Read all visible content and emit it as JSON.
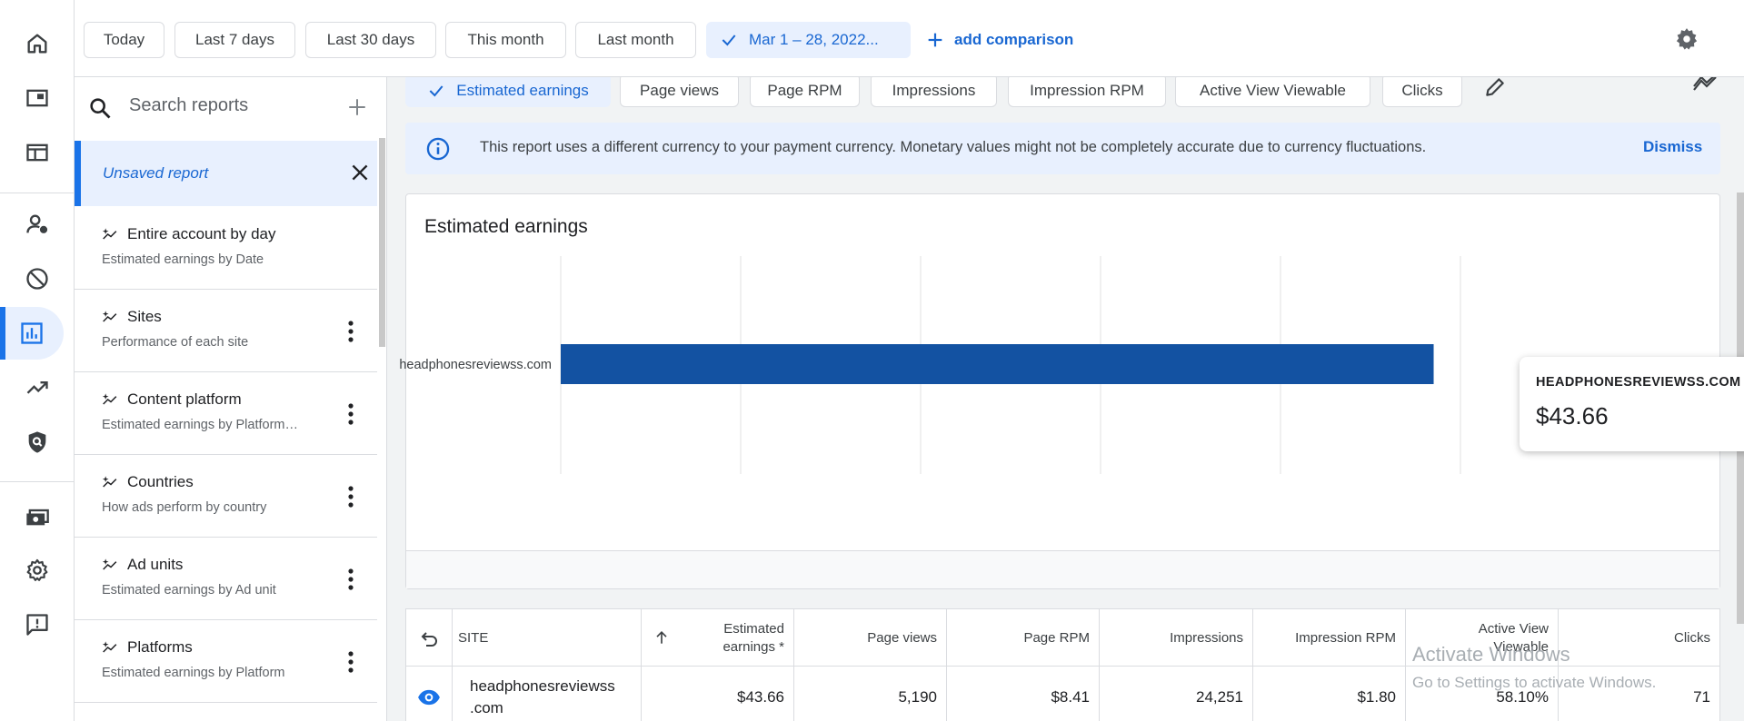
{
  "date_filters": {
    "chips": [
      "Today",
      "Last 7 days",
      "Last 30 days",
      "This month",
      "Last month"
    ],
    "selected_range": "Mar 1 – 28, 2022...",
    "add_comparison": "add comparison"
  },
  "search": {
    "placeholder": "Search reports"
  },
  "reports": {
    "unsaved_label": "Unsaved report",
    "items": [
      {
        "title": "Entire account by day",
        "subtitle": "Estimated earnings by Date"
      },
      {
        "title": "Sites",
        "subtitle": "Performance of each site"
      },
      {
        "title": "Content platform",
        "subtitle": "Estimated earnings by Platform…"
      },
      {
        "title": "Countries",
        "subtitle": "How ads perform by country"
      },
      {
        "title": "Ad units",
        "subtitle": "Estimated earnings by Ad unit"
      },
      {
        "title": "Platforms",
        "subtitle": "Estimated earnings by Platform"
      }
    ]
  },
  "metrics": {
    "chips": [
      "Estimated earnings",
      "Page views",
      "Page RPM",
      "Impressions",
      "Impression RPM",
      "Active View Viewable",
      "Clicks"
    ]
  },
  "banner": {
    "message": "This report uses a different currency to your payment currency. Monetary values might not be completely accurate due to currency fluctuations.",
    "dismiss": "Dismiss"
  },
  "chart": {
    "title": "Estimated earnings",
    "tooltip": {
      "site": "HEADPHONESREVIEWSS.COM",
      "value": "$43.66"
    }
  },
  "chart_data": {
    "type": "bar",
    "orientation": "horizontal",
    "title": "Estimated earnings",
    "categories": [
      "headphonesreviewss.com"
    ],
    "values": [
      43.66
    ],
    "xlim": [
      0,
      45
    ],
    "xticks": [
      "$0.00",
      "$9.00",
      "$18.00",
      "$27.00",
      "$36.00",
      "$45.00"
    ],
    "bar_color": "#1352a2",
    "grid": true
  },
  "table": {
    "headers": {
      "site": "SITE",
      "earnings": "Estimated earnings *",
      "page_views": "Page views",
      "page_rpm": "Page RPM",
      "impressions": "Impressions",
      "impression_rpm": "Impression RPM",
      "active_view": "Active View Viewable",
      "clicks": "Clicks"
    },
    "rows": [
      {
        "site": "headphonesreviewss.com",
        "site_line1": "headphonesreviewss",
        "site_line2": ".com",
        "earnings": "$43.66",
        "page_views": "5,190",
        "page_rpm": "$8.41",
        "impressions": "24,251",
        "impression_rpm": "$1.80",
        "active_view": "58.10%",
        "clicks": "71"
      }
    ]
  },
  "watermark": {
    "line1": "Activate Windows",
    "line2": "Go to Settings to activate Windows."
  },
  "colors": {
    "accent": "#1a73e8",
    "accent_text": "#1967d2",
    "selected_bg": "#e8f0fe",
    "bar": "#1352a2"
  }
}
